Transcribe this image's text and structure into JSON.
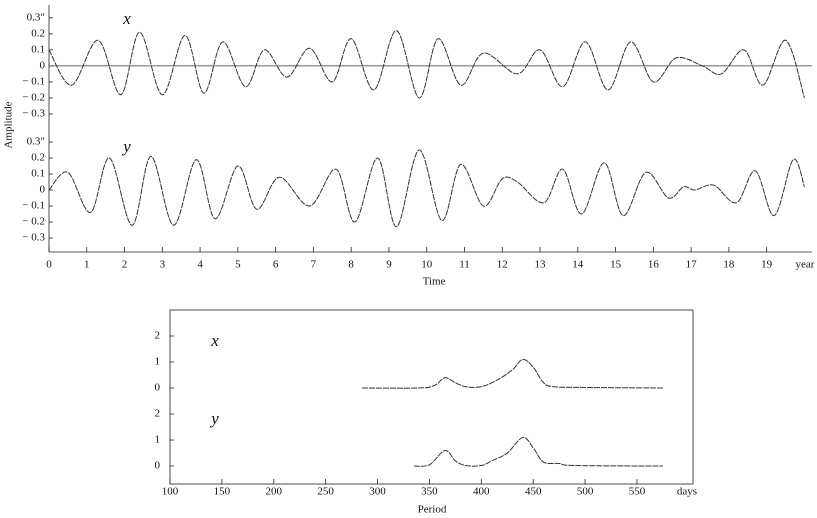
{
  "chart_data": [
    {
      "type": "line",
      "annotation": "x",
      "y_axis_label": "Amplitude",
      "zero_line": true,
      "color": "#333333",
      "xlim": [
        0,
        20.2
      ],
      "ylim": [
        -0.4,
        0.38
      ],
      "yticks": [
        {
          "value": -0.3,
          "label": "− 0.3"
        },
        {
          "value": -0.2,
          "label": "− 0.2"
        },
        {
          "value": -0.1,
          "label": "− 0.1"
        },
        0,
        0.1,
        0.2,
        {
          "value": 0.3,
          "label": "0.3″"
        }
      ],
      "x": [
        0,
        0.6,
        1.3,
        1.9,
        2.4,
        3.0,
        3.6,
        4.1,
        4.6,
        5.2,
        5.7,
        6.3,
        6.9,
        7.5,
        8.0,
        8.6,
        9.2,
        9.8,
        10.3,
        10.9,
        11.5,
        12.4,
        13.0,
        13.6,
        14.2,
        14.8,
        15.4,
        16.0,
        16.6,
        17.3,
        17.8,
        18.4,
        18.9,
        19.5,
        20.0
      ],
      "values": [
        0.1,
        -0.12,
        0.16,
        -0.18,
        0.21,
        -0.18,
        0.19,
        -0.17,
        0.15,
        -0.13,
        0.1,
        -0.07,
        0.11,
        -0.1,
        0.17,
        -0.15,
        0.22,
        -0.2,
        0.17,
        -0.12,
        0.08,
        -0.05,
        0.1,
        -0.13,
        0.15,
        -0.15,
        0.15,
        -0.1,
        0.05,
        0.0,
        -0.05,
        0.1,
        -0.12,
        0.16,
        -0.2
      ]
    },
    {
      "type": "line",
      "annotation": "y",
      "x_axis_label": "Time",
      "x_unit": "year",
      "color": "#333333",
      "xlim": [
        0,
        20.2
      ],
      "ylim": [
        -0.375,
        0.375
      ],
      "yticks": [
        {
          "value": -0.3,
          "label": "− 0.3"
        },
        {
          "value": -0.2,
          "label": "− 0.2"
        },
        {
          "value": -0.1,
          "label": "− 0.1"
        },
        0,
        0.1,
        0.2,
        {
          "value": 0.3,
          "label": "0.3″"
        }
      ],
      "xticks": [
        0,
        1,
        2,
        3,
        4,
        5,
        6,
        7,
        8,
        9,
        10,
        11,
        12,
        13,
        14,
        15,
        16,
        17,
        18,
        19
      ],
      "x": [
        0,
        0.5,
        1.1,
        1.6,
        2.2,
        2.7,
        3.3,
        3.9,
        4.4,
        5.0,
        5.5,
        6.1,
        6.9,
        7.6,
        8.1,
        8.7,
        9.2,
        9.8,
        10.4,
        10.9,
        11.5,
        12.0,
        12.4,
        13.1,
        13.6,
        14.1,
        14.7,
        15.2,
        15.8,
        16.4,
        16.8,
        17.1,
        17.6,
        18.2,
        18.7,
        19.2,
        19.7,
        20.0
      ],
      "values": [
        0,
        0.11,
        -0.14,
        0.2,
        -0.22,
        0.21,
        -0.22,
        0.19,
        -0.18,
        0.15,
        -0.12,
        0.08,
        -0.1,
        0.13,
        -0.2,
        0.2,
        -0.23,
        0.25,
        -0.19,
        0.16,
        -0.1,
        0.07,
        0.05,
        -0.08,
        0.13,
        -0.15,
        0.17,
        -0.16,
        0.11,
        -0.05,
        0.02,
        0.0,
        0.03,
        -0.08,
        0.12,
        -0.16,
        0.19,
        0.02
      ]
    },
    {
      "type": "line",
      "annotation": "x",
      "color": "#333333",
      "xlim": [
        100,
        604
      ],
      "ylim": [
        -0.5,
        3
      ],
      "yticks": [
        0,
        1,
        2
      ],
      "x": [
        285,
        340,
        355,
        365,
        375,
        385,
        400,
        415,
        430,
        440,
        450,
        460,
        470,
        500,
        575
      ],
      "values": [
        0,
        0,
        0.1,
        0.4,
        0.2,
        0.05,
        0.05,
        0.3,
        0.7,
        1.1,
        0.8,
        0.2,
        0.05,
        0.02,
        0
      ]
    },
    {
      "type": "line",
      "annotation": "y",
      "x_axis_label": "Period",
      "x_unit": "days",
      "color": "#333333",
      "xlim": [
        100,
        604
      ],
      "ylim": [
        -0.69,
        2.5
      ],
      "yticks": [
        0,
        1,
        2
      ],
      "xticks": [
        100,
        150,
        200,
        250,
        300,
        350,
        400,
        450,
        500,
        550
      ],
      "x": [
        335,
        350,
        365,
        375,
        385,
        400,
        410,
        425,
        440,
        450,
        460,
        475,
        490,
        575
      ],
      "values": [
        0,
        0.05,
        0.6,
        0.2,
        0.02,
        0.02,
        0.2,
        0.5,
        1.1,
        0.7,
        0.15,
        0.1,
        0.02,
        0
      ]
    }
  ]
}
